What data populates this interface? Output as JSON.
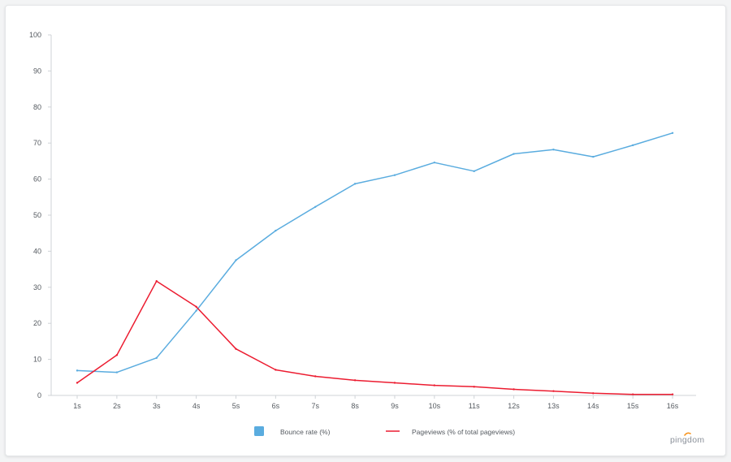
{
  "chart_data": {
    "type": "line",
    "x": [
      "1s",
      "2s",
      "3s",
      "4s",
      "5s",
      "6s",
      "7s",
      "8s",
      "9s",
      "10s",
      "11s",
      "12s",
      "13s",
      "14s",
      "15s",
      "16s"
    ],
    "series": [
      {
        "name": "Bounce rate  (%)",
        "color": "#5aacdf",
        "values": [
          6.9,
          6.4,
          10.4,
          23.5,
          37.5,
          45.7,
          52.3,
          58.7,
          61.1,
          64.6,
          62.2,
          67.0,
          68.2,
          66.2,
          69.4,
          72.8
        ]
      },
      {
        "name": "Pageviews (% of total pageviews)",
        "color": "#ec1c30",
        "values": [
          3.5,
          11.2,
          31.7,
          24.6,
          12.9,
          7.1,
          5.3,
          4.2,
          3.5,
          2.8,
          2.4,
          1.7,
          1.2,
          0.6,
          0.3,
          0.3
        ]
      }
    ],
    "yticks": [
      0,
      10,
      20,
      30,
      40,
      50,
      60,
      70,
      80,
      90,
      100
    ],
    "ylim": [
      0,
      100
    ],
    "grid": false,
    "legend": "bottom"
  },
  "branding": {
    "logo_text": "pingdom",
    "logo_accent": "#f7941d"
  }
}
